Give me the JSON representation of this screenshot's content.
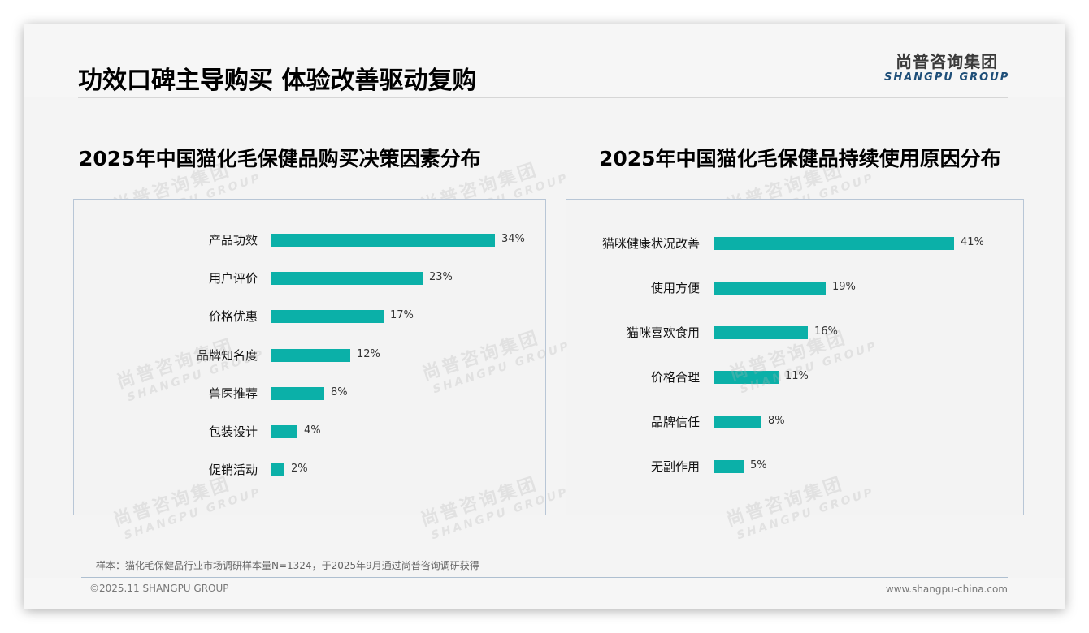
{
  "header": {
    "title": "功效口碑主导购买 体验改善驱动复购",
    "logo_cn": "尚普咨询集团",
    "logo_en": "SHANGPU GROUP"
  },
  "watermark": {
    "cn": "尚普咨询集团",
    "en": "SHANGPU GROUP"
  },
  "colors": {
    "bar": "#0bb0a8",
    "logo_en": "#1e4e78"
  },
  "chart_data": [
    {
      "type": "bar",
      "orientation": "horizontal",
      "title": "2025年中国猫化毛保健品购买决策因素分布",
      "categories": [
        "产品功效",
        "用户评价",
        "价格优惠",
        "品牌知名度",
        "兽医推荐",
        "包装设计",
        "促销活动"
      ],
      "values": [
        34,
        23,
        17,
        12,
        8,
        4,
        2
      ],
      "labels": [
        "34%",
        "23%",
        "17%",
        "12%",
        "8%",
        "4%",
        "2%"
      ],
      "unit": "%",
      "xlabel": "",
      "ylabel": "",
      "grid": false,
      "legend": "none"
    },
    {
      "type": "bar",
      "orientation": "horizontal",
      "title": "2025年中国猫化毛保健品持续使用原因分布",
      "categories": [
        "猫咪健康状况改善",
        "使用方便",
        "猫咪喜欢食用",
        "价格合理",
        "品牌信任",
        "无副作用"
      ],
      "values": [
        41,
        19,
        16,
        11,
        8,
        5
      ],
      "labels": [
        "41%",
        "19%",
        "16%",
        "11%",
        "8%",
        "5%"
      ],
      "unit": "%",
      "xlabel": "",
      "ylabel": "",
      "grid": false,
      "legend": "none"
    }
  ],
  "footer": {
    "note": "样本：猫化毛保健品行业市场调研样本量N=1324，于2025年9月通过尚普咨询调研获得",
    "copyright": "©2025.11 SHANGPU GROUP",
    "website": "www.shangpu-china.com"
  }
}
